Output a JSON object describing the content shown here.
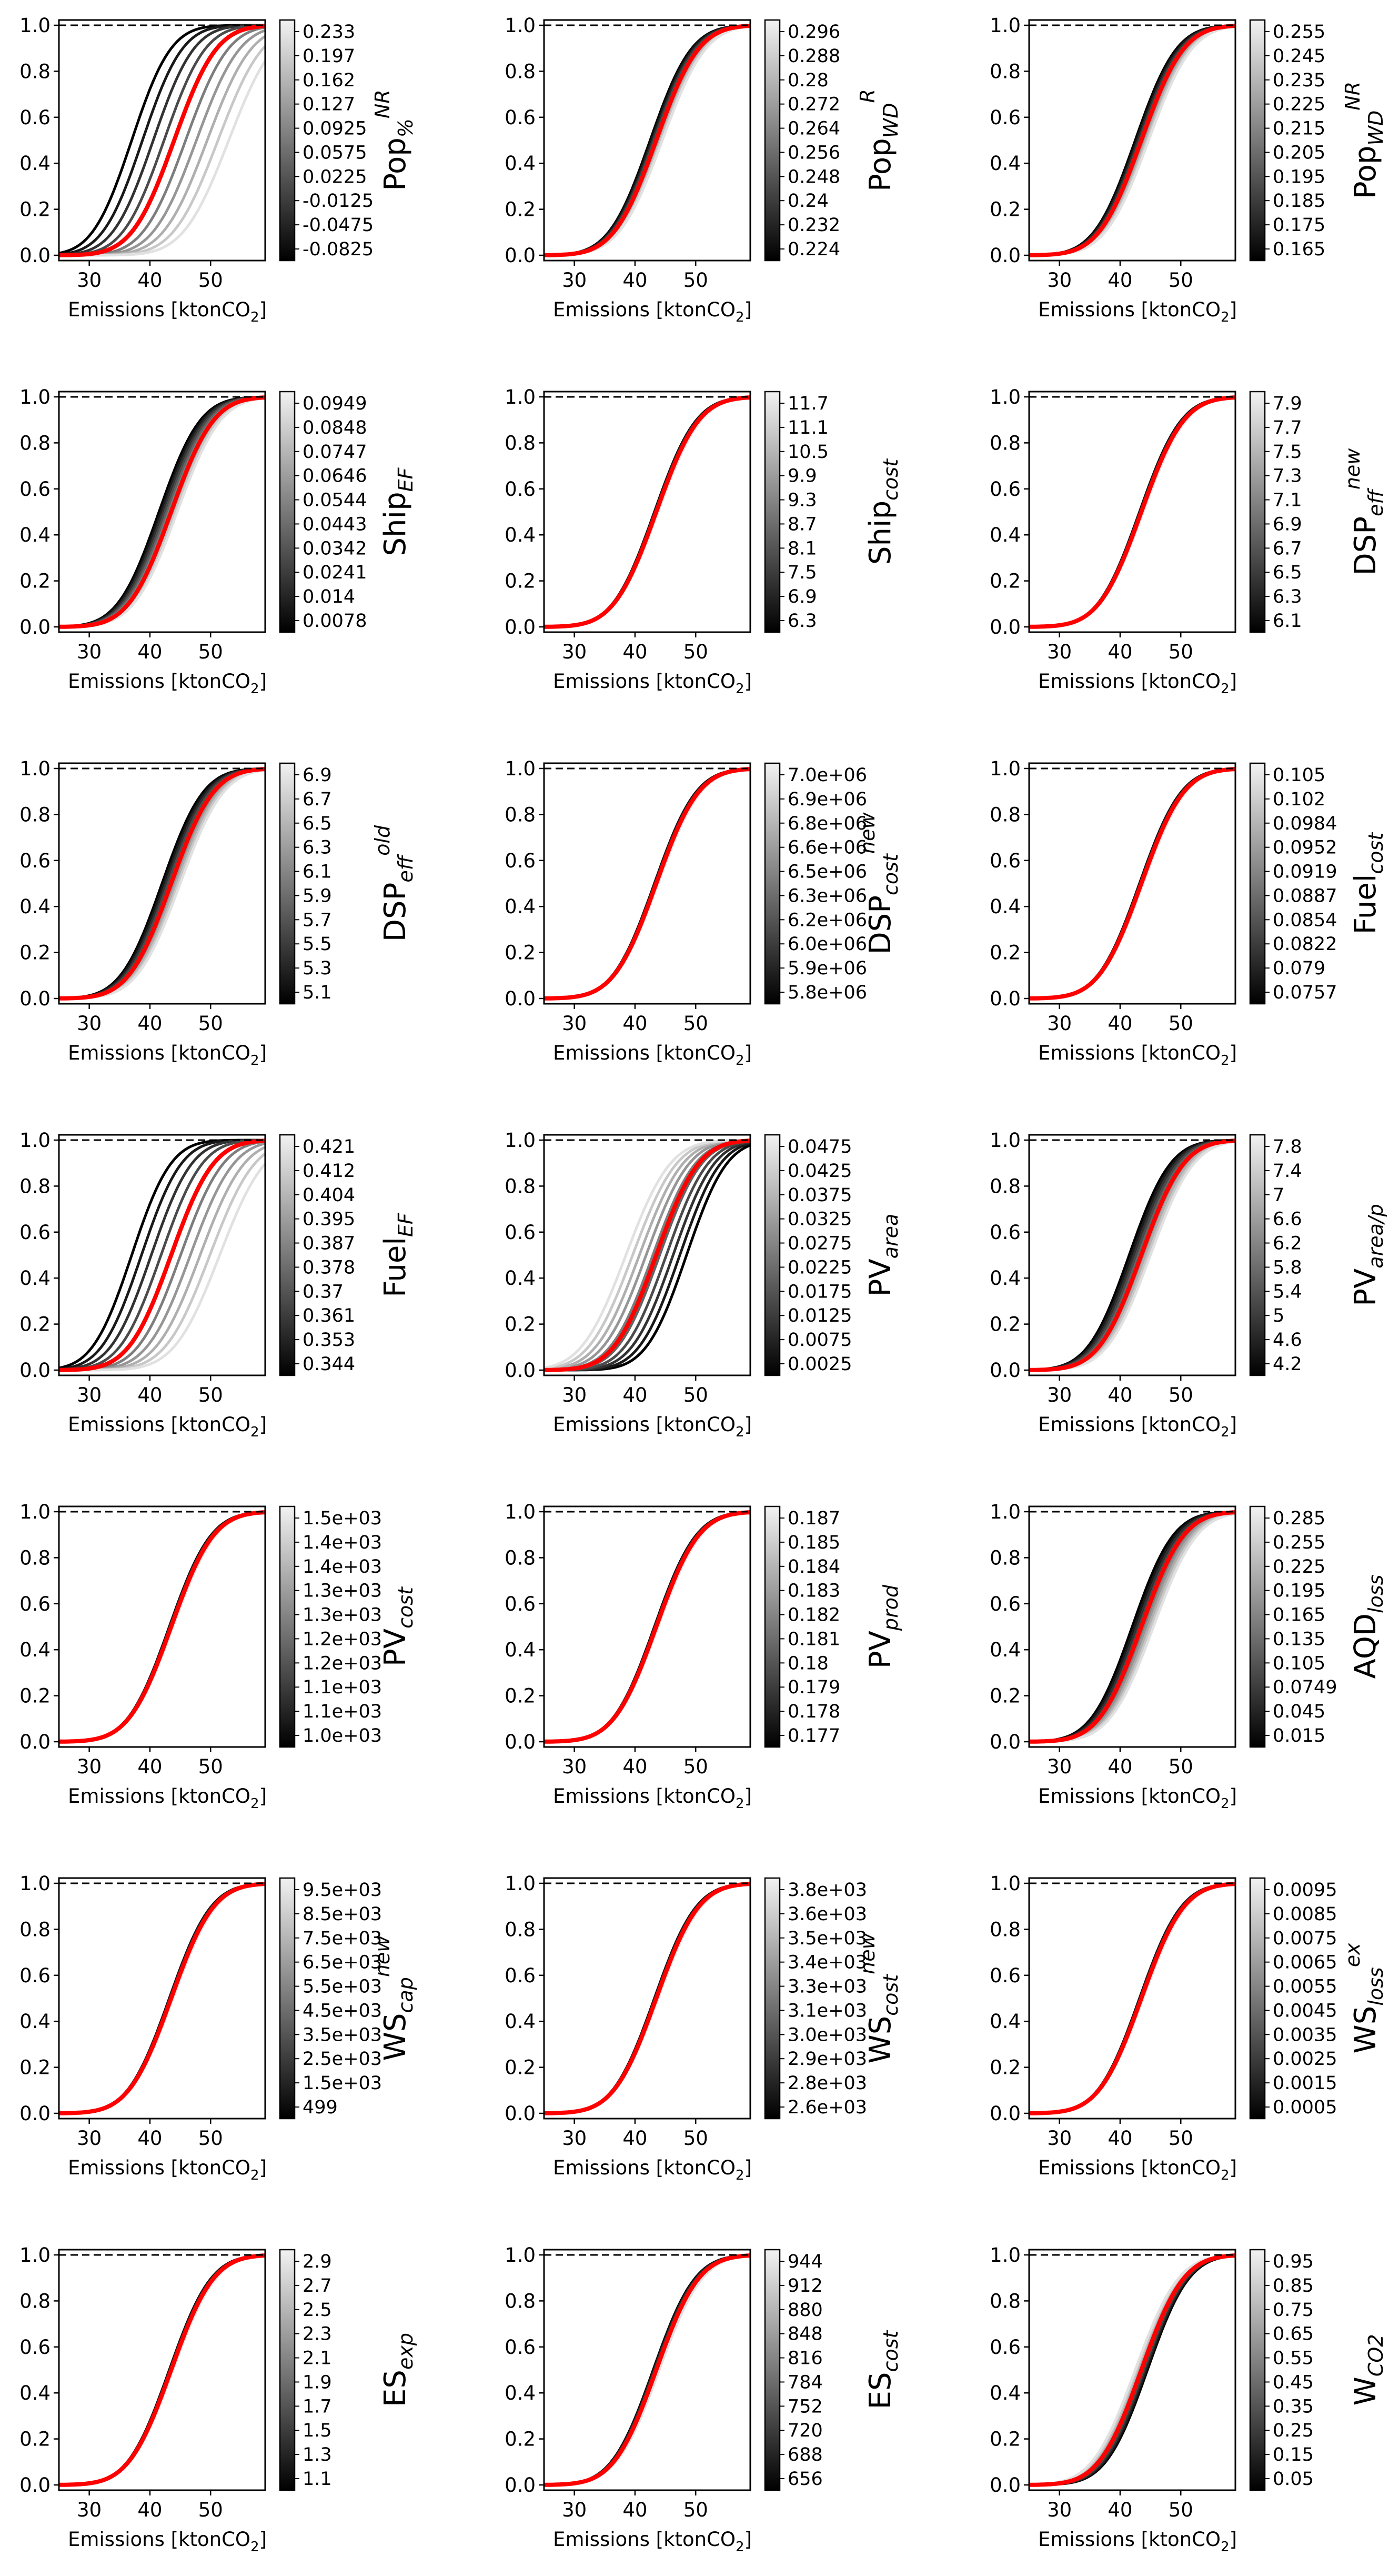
{
  "figure": {
    "layout": {
      "rows": 7,
      "cols": 3
    },
    "colors": {
      "baseline": "#ff0000",
      "shade_dark": "#000000",
      "shade_light": "#ececec",
      "reference": "#000000"
    }
  },
  "chart_data": [
    {
      "type": "line",
      "param": "Pop%NR",
      "label_main": "Pop",
      "label_sub": "%",
      "label_sup": "NR",
      "xlabel_text": "Emissions  [ktonCO",
      "xlabel_sub": "2",
      "xlabel_end": "]",
      "xticks": [
        "30",
        "40",
        "50"
      ],
      "yticks": [
        "0.0",
        "0.2",
        "0.4",
        "0.6",
        "0.8",
        "1.0"
      ],
      "xlim": [
        25,
        59
      ],
      "ylim": [
        0,
        1
      ],
      "reference_line": 1.0,
      "baseline_median": 44,
      "baseline_width": 5.5,
      "sensitivity_shift": [
        -7,
        9
      ],
      "spread_var": 0.15,
      "colorbar_ticks": [
        "0.233",
        "0.197",
        "0.162",
        "0.127",
        "0.0925",
        "0.0575",
        "0.0225",
        "-0.0125",
        "-0.0475",
        "-0.0825"
      ]
    },
    {
      "type": "line",
      "param": "PopWDR",
      "label_main": "Pop",
      "label_sub": "WD",
      "label_sup": "R",
      "xlabel_text": "Emissions  [ktonCO",
      "xlabel_sub": "2",
      "xlabel_end": "]",
      "xticks": [
        "30",
        "40",
        "50"
      ],
      "yticks": [
        "0.0",
        "0.2",
        "0.4",
        "0.6",
        "0.8",
        "1.0"
      ],
      "xlim": [
        25,
        59
      ],
      "ylim": [
        0,
        1
      ],
      "reference_line": 1.0,
      "baseline_median": 43.5,
      "baseline_width": 5.5,
      "sensitivity_shift": [
        -1,
        1
      ],
      "spread_var": 0.05,
      "colorbar_ticks": [
        "0.296",
        "0.288",
        "0.28",
        "0.272",
        "0.264",
        "0.256",
        "0.248",
        "0.24",
        "0.232",
        "0.224"
      ]
    },
    {
      "type": "line",
      "param": "PopWDNR",
      "label_main": "Pop",
      "label_sub": "WD",
      "label_sup": "NR",
      "xlabel_text": "Emissions  [ktonCO",
      "xlabel_sub": "2",
      "xlabel_end": "]",
      "xticks": [
        "30",
        "40",
        "50"
      ],
      "yticks": [
        "0.0",
        "0.2",
        "0.4",
        "0.6",
        "0.8",
        "1.0"
      ],
      "xlim": [
        25,
        59
      ],
      "ylim": [
        0,
        1
      ],
      "reference_line": 1.0,
      "baseline_median": 43.5,
      "baseline_width": 5.5,
      "sensitivity_shift": [
        -1,
        1.2
      ],
      "spread_var": 0.05,
      "colorbar_ticks": [
        "0.255",
        "0.245",
        "0.235",
        "0.225",
        "0.215",
        "0.205",
        "0.195",
        "0.185",
        "0.175",
        "0.165"
      ]
    },
    {
      "type": "line",
      "param": "ShipEF",
      "label_main": "Ship",
      "label_sub": "EF",
      "label_sup": "",
      "xlabel_text": "Emissions  [ktonCO",
      "xlabel_sub": "2",
      "xlabel_end": "]",
      "xticks": [
        "30",
        "40",
        "50"
      ],
      "yticks": [
        "0.0",
        "0.2",
        "0.4",
        "0.6",
        "0.8",
        "1.0"
      ],
      "xlim": [
        25,
        59
      ],
      "ylim": [
        0,
        1
      ],
      "reference_line": 1.0,
      "baseline_median": 43.5,
      "baseline_width": 5.5,
      "sensitivity_shift": [
        -2,
        1
      ],
      "spread_var": 0.05,
      "colorbar_ticks": [
        "0.0949",
        "0.0848",
        "0.0747",
        "0.0646",
        "0.0544",
        "0.0443",
        "0.0342",
        "0.0241",
        "0.014",
        "0.0078"
      ]
    },
    {
      "type": "line",
      "param": "Shipcost",
      "label_main": "Ship",
      "label_sub": "cost",
      "label_sup": "",
      "xlabel_text": "Emissions  [ktonCO",
      "xlabel_sub": "2",
      "xlabel_end": "]",
      "xticks": [
        "30",
        "40",
        "50"
      ],
      "yticks": [
        "0.0",
        "0.2",
        "0.4",
        "0.6",
        "0.8",
        "1.0"
      ],
      "xlim": [
        25,
        59
      ],
      "ylim": [
        0,
        1
      ],
      "reference_line": 1.0,
      "baseline_median": 43.5,
      "baseline_width": 5.5,
      "sensitivity_shift": [
        -0.3,
        0.3
      ],
      "spread_var": 0.03,
      "colorbar_ticks": [
        "11.7",
        "11.1",
        "10.5",
        "9.9",
        "9.3",
        "8.7",
        "8.1",
        "7.5",
        "6.9",
        "6.3"
      ]
    },
    {
      "type": "line",
      "param": "DSPeffnew",
      "label_main": "DSP",
      "label_sub": "eff",
      "label_sup": "new",
      "xlabel_text": "Emissions  [ktonCO",
      "xlabel_sub": "2",
      "xlabel_end": "]",
      "xticks": [
        "30",
        "40",
        "50"
      ],
      "yticks": [
        "0.0",
        "0.2",
        "0.4",
        "0.6",
        "0.8",
        "1.0"
      ],
      "xlim": [
        25,
        59
      ],
      "ylim": [
        0,
        1
      ],
      "reference_line": 1.0,
      "baseline_median": 43.5,
      "baseline_width": 5.5,
      "sensitivity_shift": [
        -0.3,
        0.3
      ],
      "spread_var": 0.03,
      "colorbar_ticks": [
        "7.9",
        "7.7",
        "7.5",
        "7.3",
        "7.1",
        "6.9",
        "6.7",
        "6.5",
        "6.3",
        "6.1"
      ]
    },
    {
      "type": "line",
      "param": "DSPeffold",
      "label_main": "DSP",
      "label_sub": "eff",
      "label_sup": "old",
      "xlabel_text": "Emissions  [ktonCO",
      "xlabel_sub": "2",
      "xlabel_end": "]",
      "xticks": [
        "30",
        "40",
        "50"
      ],
      "yticks": [
        "0.0",
        "0.2",
        "0.4",
        "0.6",
        "0.8",
        "1.0"
      ],
      "xlim": [
        25,
        59
      ],
      "ylim": [
        0,
        1
      ],
      "reference_line": 1.0,
      "baseline_median": 43.5,
      "baseline_width": 5.5,
      "sensitivity_shift": [
        -1.5,
        1.5
      ],
      "spread_var": 0.05,
      "colorbar_ticks": [
        "6.9",
        "6.7",
        "6.5",
        "6.3",
        "6.1",
        "5.9",
        "5.7",
        "5.5",
        "5.3",
        "5.1"
      ]
    },
    {
      "type": "line",
      "param": "DSPcostnew",
      "label_main": "DSP",
      "label_sub": "cost",
      "label_sup": "new",
      "xlabel_text": "Emissions  [ktonCO",
      "xlabel_sub": "2",
      "xlabel_end": "]",
      "xticks": [
        "30",
        "40",
        "50"
      ],
      "yticks": [
        "0.0",
        "0.2",
        "0.4",
        "0.6",
        "0.8",
        "1.0"
      ],
      "xlim": [
        25,
        59
      ],
      "ylim": [
        0,
        1
      ],
      "reference_line": 1.0,
      "baseline_median": 43.5,
      "baseline_width": 5.5,
      "sensitivity_shift": [
        -0.3,
        0.3
      ],
      "spread_var": 0.03,
      "colorbar_ticks": [
        "7.0e+06",
        "6.9e+06",
        "6.8e+06",
        "6.6e+06",
        "6.5e+06",
        "6.3e+06",
        "6.2e+06",
        "6.0e+06",
        "5.9e+06",
        "5.8e+06"
      ]
    },
    {
      "type": "line",
      "param": "Fuelcost",
      "label_main": "Fuel",
      "label_sub": "cost",
      "label_sup": "",
      "xlabel_text": "Emissions  [ktonCO",
      "xlabel_sub": "2",
      "xlabel_end": "]",
      "xticks": [
        "30",
        "40",
        "50"
      ],
      "yticks": [
        "0.0",
        "0.2",
        "0.4",
        "0.6",
        "0.8",
        "1.0"
      ],
      "xlim": [
        25,
        59
      ],
      "ylim": [
        0,
        1
      ],
      "reference_line": 1.0,
      "baseline_median": 43.5,
      "baseline_width": 5.5,
      "sensitivity_shift": [
        -0.3,
        0.3
      ],
      "spread_var": 0.03,
      "colorbar_ticks": [
        "0.105",
        "0.102",
        "0.0984",
        "0.0952",
        "0.0919",
        "0.0887",
        "0.0854",
        "0.0822",
        "0.079",
        "0.0757"
      ]
    },
    {
      "type": "line",
      "param": "FuelEF",
      "label_main": "Fuel",
      "label_sub": "EF",
      "label_sup": "",
      "xlabel_text": "Emissions  [ktonCO",
      "xlabel_sub": "2",
      "xlabel_end": "]",
      "xticks": [
        "30",
        "40",
        "50"
      ],
      "yticks": [
        "0.0",
        "0.2",
        "0.4",
        "0.6",
        "0.8",
        "1.0"
      ],
      "xlim": [
        25,
        59
      ],
      "ylim": [
        0,
        1
      ],
      "reference_line": 1.0,
      "baseline_median": 43.5,
      "baseline_width": 5.5,
      "sensitivity_shift": [
        -6.5,
        8
      ],
      "spread_var": 0.15,
      "colorbar_ticks": [
        "0.421",
        "0.412",
        "0.404",
        "0.395",
        "0.387",
        "0.378",
        "0.37",
        "0.361",
        "0.353",
        "0.344"
      ]
    },
    {
      "type": "line",
      "param": "PVarea",
      "label_main": "PV",
      "label_sub": "area",
      "label_sup": "",
      "xlabel_text": "Emissions  [ktonCO",
      "xlabel_sub": "2",
      "xlabel_end": "]",
      "xticks": [
        "30",
        "40",
        "50"
      ],
      "yticks": [
        "0.0",
        "0.2",
        "0.4",
        "0.6",
        "0.8",
        "1.0"
      ],
      "xlim": [
        25,
        59
      ],
      "ylim": [
        0,
        1
      ],
      "reference_line": 1.0,
      "baseline_median": 43.5,
      "baseline_width": 5.5,
      "sensitivity_shift": [
        5,
        -5
      ],
      "spread_var": 0.1,
      "colorbar_ticks": [
        "0.0475",
        "0.0425",
        "0.0375",
        "0.0325",
        "0.0275",
        "0.0225",
        "0.0175",
        "0.0125",
        "0.0075",
        "0.0025"
      ]
    },
    {
      "type": "line",
      "param": "PVarealp",
      "label_main": "PV",
      "label_sub": "area/p",
      "label_sup": "",
      "xlabel_text": "Emissions  [ktonCO",
      "xlabel_sub": "2",
      "xlabel_end": "]",
      "xticks": [
        "30",
        "40",
        "50"
      ],
      "yticks": [
        "0.0",
        "0.2",
        "0.4",
        "0.6",
        "0.8",
        "1.0"
      ],
      "xlim": [
        25,
        59
      ],
      "ylim": [
        0,
        1
      ],
      "reference_line": 1.0,
      "baseline_median": 43.5,
      "baseline_width": 5.5,
      "sensitivity_shift": [
        -2,
        1.5
      ],
      "spread_var": 0.05,
      "colorbar_ticks": [
        "7.8",
        "7.4",
        "7",
        "6.6",
        "6.2",
        "5.8",
        "5.4",
        "5",
        "4.6",
        "4.2"
      ]
    },
    {
      "type": "line",
      "param": "PVcost",
      "label_main": "PV",
      "label_sub": "cost",
      "label_sup": "",
      "xlabel_text": "Emissions  [ktonCO",
      "xlabel_sub": "2",
      "xlabel_end": "]",
      "xticks": [
        "30",
        "40",
        "50"
      ],
      "yticks": [
        "0.0",
        "0.2",
        "0.4",
        "0.6",
        "0.8",
        "1.0"
      ],
      "xlim": [
        25,
        59
      ],
      "ylim": [
        0,
        1
      ],
      "reference_line": 1.0,
      "baseline_median": 43.5,
      "baseline_width": 5.5,
      "sensitivity_shift": [
        -0.3,
        0.3
      ],
      "spread_var": 0.03,
      "colorbar_ticks": [
        "1.5e+03",
        "1.4e+03",
        "1.4e+03",
        "1.3e+03",
        "1.3e+03",
        "1.2e+03",
        "1.2e+03",
        "1.1e+03",
        "1.1e+03",
        "1.0e+03"
      ]
    },
    {
      "type": "line",
      "param": "PVprod",
      "label_main": "PV",
      "label_sub": "prod",
      "label_sup": "",
      "xlabel_text": "Emissions  [ktonCO",
      "xlabel_sub": "2",
      "xlabel_end": "]",
      "xticks": [
        "30",
        "40",
        "50"
      ],
      "yticks": [
        "0.0",
        "0.2",
        "0.4",
        "0.6",
        "0.8",
        "1.0"
      ],
      "xlim": [
        25,
        59
      ],
      "ylim": [
        0,
        1
      ],
      "reference_line": 1.0,
      "baseline_median": 43.5,
      "baseline_width": 5.5,
      "sensitivity_shift": [
        -0.3,
        0.3
      ],
      "spread_var": 0.03,
      "colorbar_ticks": [
        "0.187",
        "0.185",
        "0.184",
        "0.183",
        "0.182",
        "0.181",
        "0.18",
        "0.179",
        "0.178",
        "0.177"
      ]
    },
    {
      "type": "line",
      "param": "AQDloss",
      "label_main": "AQD",
      "label_sub": "loss",
      "label_sup": "",
      "xlabel_text": "Emissions  [ktonCO",
      "xlabel_sub": "2",
      "xlabel_end": "]",
      "xticks": [
        "30",
        "40",
        "50"
      ],
      "yticks": [
        "0.0",
        "0.2",
        "0.4",
        "0.6",
        "0.8",
        "1.0"
      ],
      "xlim": [
        25,
        59
      ],
      "ylim": [
        0,
        1
      ],
      "reference_line": 1.0,
      "baseline_median": 43.5,
      "baseline_width": 5.5,
      "sensitivity_shift": [
        -1.5,
        2
      ],
      "spread_var": 0.06,
      "colorbar_ticks": [
        "0.285",
        "0.255",
        "0.225",
        "0.195",
        "0.165",
        "0.135",
        "0.105",
        "0.0749",
        "0.045",
        "0.015"
      ]
    },
    {
      "type": "line",
      "param": "WScapnew",
      "label_main": "WS",
      "label_sub": "cap",
      "label_sup": "new",
      "xlabel_text": "Emissions  [ktonCO",
      "xlabel_sub": "2",
      "xlabel_end": "]",
      "xticks": [
        "30",
        "40",
        "50"
      ],
      "yticks": [
        "0.0",
        "0.2",
        "0.4",
        "0.6",
        "0.8",
        "1.0"
      ],
      "xlim": [
        25,
        59
      ],
      "ylim": [
        0,
        1
      ],
      "reference_line": 1.0,
      "baseline_median": 43.5,
      "baseline_width": 5.5,
      "sensitivity_shift": [
        -0.3,
        0.3
      ],
      "spread_var": 0.03,
      "colorbar_ticks": [
        "9.5e+03",
        "8.5e+03",
        "7.5e+03",
        "6.5e+03",
        "5.5e+03",
        "4.5e+03",
        "3.5e+03",
        "2.5e+03",
        "1.5e+03",
        "499"
      ]
    },
    {
      "type": "line",
      "param": "WScostnew",
      "label_main": "WS",
      "label_sub": "cost",
      "label_sup": "new",
      "xlabel_text": "Emissions  [ktonCO",
      "xlabel_sub": "2",
      "xlabel_end": "]",
      "xticks": [
        "30",
        "40",
        "50"
      ],
      "yticks": [
        "0.0",
        "0.2",
        "0.4",
        "0.6",
        "0.8",
        "1.0"
      ],
      "xlim": [
        25,
        59
      ],
      "ylim": [
        0,
        1
      ],
      "reference_line": 1.0,
      "baseline_median": 43.5,
      "baseline_width": 5.5,
      "sensitivity_shift": [
        -0.3,
        0.3
      ],
      "spread_var": 0.03,
      "colorbar_ticks": [
        "3.8e+03",
        "3.6e+03",
        "3.5e+03",
        "3.4e+03",
        "3.3e+03",
        "3.1e+03",
        "3.0e+03",
        "2.9e+03",
        "2.8e+03",
        "2.6e+03"
      ]
    },
    {
      "type": "line",
      "param": "WSlossex",
      "label_main": "WS",
      "label_sub": "loss",
      "label_sup": "ex",
      "xlabel_text": "Emissions  [ktonCO",
      "xlabel_sub": "2",
      "xlabel_end": "]",
      "xticks": [
        "30",
        "40",
        "50"
      ],
      "yticks": [
        "0.0",
        "0.2",
        "0.4",
        "0.6",
        "0.8",
        "1.0"
      ],
      "xlim": [
        25,
        59
      ],
      "ylim": [
        0,
        1
      ],
      "reference_line": 1.0,
      "baseline_median": 43.5,
      "baseline_width": 5.5,
      "sensitivity_shift": [
        -0.3,
        0.3
      ],
      "spread_var": 0.03,
      "colorbar_ticks": [
        "0.0095",
        "0.0085",
        "0.0075",
        "0.0065",
        "0.0055",
        "0.0045",
        "0.0035",
        "0.0025",
        "0.0015",
        "0.0005"
      ]
    },
    {
      "type": "line",
      "param": "ESexp",
      "label_main": "ES",
      "label_sub": "exp",
      "label_sup": "",
      "xlabel_text": "Emissions  [ktonCO",
      "xlabel_sub": "2",
      "xlabel_end": "]",
      "xticks": [
        "30",
        "40",
        "50"
      ],
      "yticks": [
        "0.0",
        "0.2",
        "0.4",
        "0.6",
        "0.8",
        "1.0"
      ],
      "xlim": [
        25,
        59
      ],
      "ylim": [
        0,
        1
      ],
      "reference_line": 1.0,
      "baseline_median": 43.5,
      "baseline_width": 5.5,
      "sensitivity_shift": [
        -0.3,
        0.3
      ],
      "spread_var": 0.03,
      "colorbar_ticks": [
        "2.9",
        "2.7",
        "2.5",
        "2.3",
        "2.1",
        "1.9",
        "1.7",
        "1.5",
        "1.3",
        "1.1"
      ]
    },
    {
      "type": "line",
      "param": "EScost",
      "label_main": "ES",
      "label_sub": "cost",
      "label_sup": "",
      "xlabel_text": "Emissions  [ktonCO",
      "xlabel_sub": "2",
      "xlabel_end": "]",
      "xticks": [
        "30",
        "40",
        "50"
      ],
      "yticks": [
        "0.0",
        "0.2",
        "0.4",
        "0.6",
        "0.8",
        "1.0"
      ],
      "xlim": [
        25,
        59
      ],
      "ylim": [
        0,
        1
      ],
      "reference_line": 1.0,
      "baseline_median": 43.5,
      "baseline_width": 5.5,
      "sensitivity_shift": [
        -0.5,
        0.5
      ],
      "spread_var": 0.03,
      "colorbar_ticks": [
        "944",
        "912",
        "880",
        "848",
        "816",
        "784",
        "752",
        "720",
        "688",
        "656"
      ]
    },
    {
      "type": "line",
      "param": "WCO2",
      "label_main": "W",
      "label_sub": "CO2",
      "label_sup": "",
      "xlabel_text": "Emissions  [ktonCO",
      "xlabel_sub": "2",
      "xlabel_end": "]",
      "xticks": [
        "30",
        "40",
        "50"
      ],
      "yticks": [
        "0.0",
        "0.2",
        "0.4",
        "0.6",
        "0.8",
        "1.0"
      ],
      "xlim": [
        25,
        59
      ],
      "ylim": [
        0,
        1
      ],
      "reference_line": 1.0,
      "baseline_median": 43.5,
      "baseline_width": 5.5,
      "sensitivity_shift": [
        1,
        -1
      ],
      "spread_var": 0.04,
      "colorbar_ticks": [
        "0.95",
        "0.85",
        "0.75",
        "0.65",
        "0.55",
        "0.45",
        "0.35",
        "0.25",
        "0.15",
        "0.05"
      ]
    }
  ]
}
